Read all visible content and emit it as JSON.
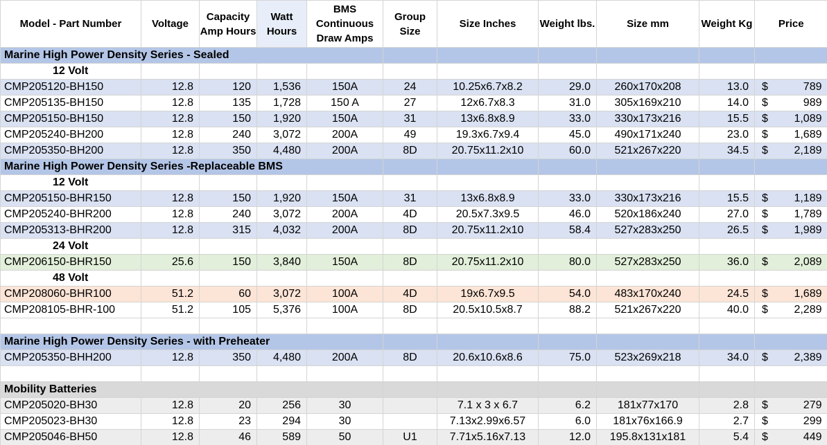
{
  "columns": [
    "Model - Part Number",
    "Voltage",
    "Capacity Amp Hours",
    "Watt Hours",
    "BMS Continuous Draw Amps",
    "Group Size",
    "Size Inches",
    "Weight lbs.",
    "Size mm",
    "Weight Kg",
    "Price"
  ],
  "currency_symbol": "$",
  "sections": {
    "sealed": "Marine High Power Density Series - Sealed",
    "replaceable": "Marine High Power Density Series -Replaceable BMS",
    "preheater": "Marine High Power Density Series - with Preheater",
    "mobility": "Mobility Batteries"
  },
  "voltage_labels": {
    "v12": "12 Volt",
    "v24": "24 Volt",
    "v48": "48 Volt"
  },
  "sealed_rows": [
    {
      "model": "CMP205120-BH150",
      "voltage": "12.8",
      "capacity": "120",
      "watt": "1,536",
      "bms": "150A",
      "group": "24",
      "size_in": "10.25x6.7x8.2",
      "lbs": "29.0",
      "size_mm": "260x170x208",
      "kg": "13.0",
      "price": "789"
    },
    {
      "model": "CMP205135-BH150",
      "voltage": "12.8",
      "capacity": "135",
      "watt": "1,728",
      "bms": "150 A",
      "group": "27",
      "size_in": "12x6.7x8.3",
      "lbs": "31.0",
      "size_mm": "305x169x210",
      "kg": "14.0",
      "price": "989"
    },
    {
      "model": "CMP205150-BH150",
      "voltage": "12.8",
      "capacity": "150",
      "watt": "1,920",
      "bms": "150A",
      "group": "31",
      "size_in": "13x6.8x8.9",
      "lbs": "33.0",
      "size_mm": "330x173x216",
      "kg": "15.5",
      "price": "1,089"
    },
    {
      "model": "CMP205240-BH200",
      "voltage": "12.8",
      "capacity": "240",
      "watt": "3,072",
      "bms": "200A",
      "group": "49",
      "size_in": "19.3x6.7x9.4",
      "lbs": "45.0",
      "size_mm": "490x171x240",
      "kg": "23.0",
      "price": "1,689"
    },
    {
      "model": "CMP205350-BH200",
      "voltage": "12.8",
      "capacity": "350",
      "watt": "4,480",
      "bms": "200A",
      "group": "8D",
      "size_in": "20.75x11.2x10",
      "lbs": "60.0",
      "size_mm": "521x267x220",
      "kg": "34.5",
      "price": "2,189"
    }
  ],
  "replaceable_12_rows": [
    {
      "model": "CMP205150-BHR150",
      "voltage": "12.8",
      "capacity": "150",
      "watt": "1,920",
      "bms": "150A",
      "group": "31",
      "size_in": "13x6.8x8.9",
      "lbs": "33.0",
      "size_mm": "330x173x216",
      "kg": "15.5",
      "price": "1,189"
    },
    {
      "model": "CMP205240-BHR200",
      "voltage": "12.8",
      "capacity": "240",
      "watt": "3,072",
      "bms": "200A",
      "group": "4D",
      "size_in": "20.5x7.3x9.5",
      "lbs": "46.0",
      "size_mm": "520x186x240",
      "kg": "27.0",
      "price": "1,789"
    },
    {
      "model": "CMP205313-BHR200",
      "voltage": "12.8",
      "capacity": "315",
      "watt": "4,032",
      "bms": "200A",
      "group": "8D",
      "size_in": "20.75x11.2x10",
      "lbs": "58.4",
      "size_mm": "527x283x250",
      "kg": "26.5",
      "price": "1,989"
    }
  ],
  "replaceable_24_rows": [
    {
      "model": "CMP206150-BHR150",
      "voltage": "25.6",
      "capacity": "150",
      "watt": "3,840",
      "bms": "150A",
      "group": "8D",
      "size_in": "20.75x11.2x10",
      "lbs": "80.0",
      "size_mm": "527x283x250",
      "kg": "36.0",
      "price": "2,089"
    }
  ],
  "replaceable_48_rows": [
    {
      "model": "CMP208060-BHR100",
      "voltage": "51.2",
      "capacity": "60",
      "watt": "3,072",
      "bms": "100A",
      "group": "4D",
      "size_in": "19x6.7x9.5",
      "lbs": "54.0",
      "size_mm": "483x170x240",
      "kg": "24.5",
      "price": "1,689"
    },
    {
      "model": "CMP208105-BHR-100",
      "voltage": "51.2",
      "capacity": "105",
      "watt": "5,376",
      "bms": "100A",
      "group": "8D",
      "size_in": "20.5x10.5x8.7",
      "lbs": "88.2",
      "size_mm": "521x267x220",
      "kg": "40.0",
      "price": "2,289"
    }
  ],
  "preheater_rows": [
    {
      "model": "CMP205350-BHH200",
      "voltage": "12.8",
      "capacity": "350",
      "watt": "4,480",
      "bms": "200A",
      "group": "8D",
      "size_in": "20.6x10.6x8.6",
      "lbs": "75.0",
      "size_mm": "523x269x218",
      "kg": "34.0",
      "price": "2,389"
    }
  ],
  "mobility_rows": [
    {
      "model": "CMP205020-BH30",
      "voltage": "12.8",
      "capacity": "20",
      "watt": "256",
      "bms": "30",
      "group": "",
      "size_in": "7.1 x 3 x 6.7",
      "lbs": "6.2",
      "size_mm": "181x77x170",
      "kg": "2.8",
      "price": "279"
    },
    {
      "model": "CMP205023-BH30",
      "voltage": "12.8",
      "capacity": "23",
      "watt": "294",
      "bms": "30",
      "group": "",
      "size_in": "7.13x2.99x6.57",
      "lbs": "6.0",
      "size_mm": "181x76x166.9",
      "kg": "2.7",
      "price": "299"
    },
    {
      "model": "CMP205046-BH50",
      "voltage": "12.8",
      "capacity": "46",
      "watt": "589",
      "bms": "50",
      "group": "U1",
      "size_in": "7.71x5.16x7.13",
      "lbs": "12.0",
      "size_mm": "195.8x131x181",
      "kg": "5.4",
      "price": "449"
    }
  ]
}
